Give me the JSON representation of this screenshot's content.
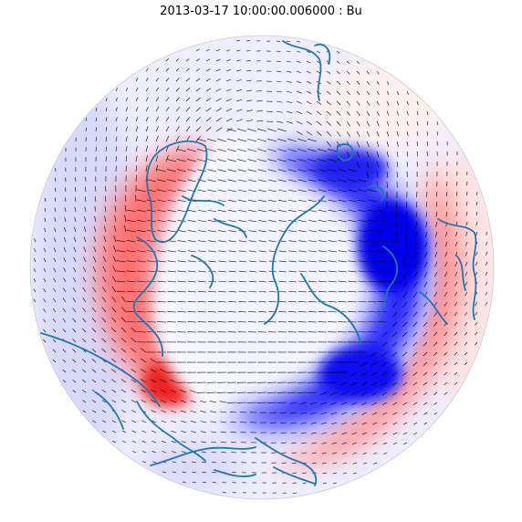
{
  "figure": {
    "title": "2013-03-17 10:00:00.006000 : Bu"
  },
  "map": {
    "projection": "polar-stereographic",
    "hemisphere": "north",
    "field_name": "Bu",
    "colormap": "bwr",
    "colors": {
      "positive": "#ff0000",
      "negative": "#0000ff",
      "neutral": "#ffffff",
      "coastline": "#1f77b4",
      "vectors": "#000000",
      "boundary": "#cccccc"
    },
    "layers": [
      "color-field",
      "vector-arrows",
      "coastlines"
    ]
  }
}
